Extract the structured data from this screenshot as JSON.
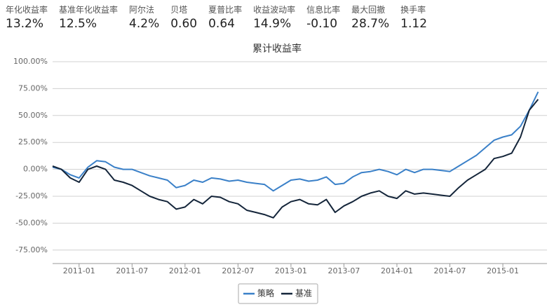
{
  "metrics": [
    {
      "label": "年化收益率",
      "value": "13.2%"
    },
    {
      "label": "基准年化收益率",
      "value": "12.5%"
    },
    {
      "label": "阿尔法",
      "value": "4.2%"
    },
    {
      "label": "贝塔",
      "value": "0.60"
    },
    {
      "label": "夏普比率",
      "value": "0.64"
    },
    {
      "label": "收益波动率",
      "value": "14.9%"
    },
    {
      "label": "信息比率",
      "value": "-0.10"
    },
    {
      "label": "最大回撤",
      "value": "28.7%"
    },
    {
      "label": "换手率",
      "value": "1.12"
    }
  ],
  "chart_data": {
    "type": "line",
    "title": "累计收益率",
    "x": [
      "2010-10",
      "2010-11",
      "2010-12",
      "2011-01",
      "2011-02",
      "2011-03",
      "2011-04",
      "2011-05",
      "2011-06",
      "2011-07",
      "2011-08",
      "2011-09",
      "2011-10",
      "2011-11",
      "2011-12",
      "2012-01",
      "2012-02",
      "2012-03",
      "2012-04",
      "2012-05",
      "2012-06",
      "2012-07",
      "2012-08",
      "2012-09",
      "2012-10",
      "2012-11",
      "2012-12",
      "2013-01",
      "2013-02",
      "2013-03",
      "2013-04",
      "2013-05",
      "2013-06",
      "2013-07",
      "2013-08",
      "2013-09",
      "2013-10",
      "2013-11",
      "2013-12",
      "2014-01",
      "2014-02",
      "2014-03",
      "2014-04",
      "2014-05",
      "2014-06",
      "2014-07",
      "2014-08",
      "2014-09",
      "2014-10",
      "2014-11",
      "2014-12",
      "2015-01",
      "2015-02",
      "2015-03",
      "2015-04",
      "2015-05"
    ],
    "series": [
      {
        "name": "策略",
        "color": "#3a80c8",
        "values": [
          2,
          0,
          -5,
          -8,
          2,
          8,
          7,
          2,
          0,
          0,
          -3,
          -6,
          -8,
          -10,
          -17,
          -15,
          -10,
          -12,
          -8,
          -9,
          -11,
          -10,
          -12,
          -13,
          -14,
          -20,
          -15,
          -10,
          -9,
          -11,
          -10,
          -7,
          -14,
          -13,
          -7,
          -3,
          -2,
          0,
          -2,
          -5,
          0,
          -3,
          0,
          0,
          -1,
          -2,
          3,
          8,
          13,
          20,
          27,
          30,
          32,
          40,
          55,
          72
        ]
      },
      {
        "name": "基准",
        "color": "#14253a",
        "values": [
          3,
          0,
          -8,
          -12,
          0,
          3,
          0,
          -10,
          -12,
          -15,
          -20,
          -25,
          -28,
          -30,
          -37,
          -35,
          -28,
          -32,
          -25,
          -26,
          -30,
          -32,
          -38,
          -40,
          -42,
          -45,
          -35,
          -30,
          -28,
          -32,
          -33,
          -28,
          -40,
          -34,
          -30,
          -25,
          -22,
          -20,
          -25,
          -27,
          -20,
          -23,
          -22,
          -23,
          -24,
          -25,
          -17,
          -10,
          -5,
          0,
          10,
          12,
          15,
          30,
          55,
          65
        ]
      }
    ],
    "xlim": [
      "2010-10",
      "2015-06"
    ],
    "xticks": [
      "2011-01",
      "2011-07",
      "2012-01",
      "2012-07",
      "2013-01",
      "2013-07",
      "2014-01",
      "2014-07",
      "2015-01"
    ],
    "ylim": [
      -87.5,
      100
    ],
    "yticks": [
      {
        "value": -75,
        "label": "-75.00%"
      },
      {
        "value": -50,
        "label": "-50.00%"
      },
      {
        "value": -25,
        "label": "-25.00%"
      },
      {
        "value": 0,
        "label": "0.00%"
      },
      {
        "value": 25,
        "label": "25.00%"
      },
      {
        "value": 50,
        "label": "50.00%"
      },
      {
        "value": 75,
        "label": "75.00%"
      },
      {
        "value": 100,
        "label": "100.00%"
      }
    ],
    "grid": true,
    "legend": "bottom"
  }
}
